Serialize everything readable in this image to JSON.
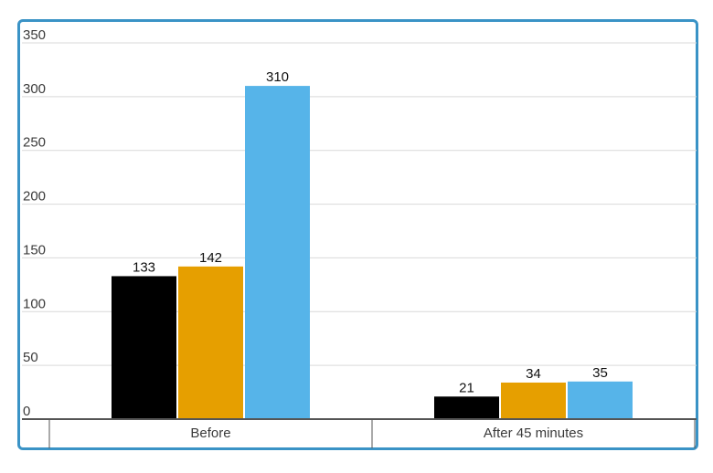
{
  "chart_data": {
    "type": "bar",
    "categories": [
      "Before",
      "After 45 minutes"
    ],
    "series": [
      {
        "values": [
          133,
          21
        ],
        "color": "#000000"
      },
      {
        "values": [
          142,
          34
        ],
        "color": "#e69f00"
      },
      {
        "values": [
          310,
          35
        ],
        "color": "#56b4e9"
      }
    ],
    "ylim": [
      0,
      350
    ],
    "yticks": [
      0,
      50,
      100,
      150,
      200,
      250,
      300,
      350
    ],
    "grid": true,
    "data_labels": true,
    "frame_color": "#3a93c6"
  }
}
